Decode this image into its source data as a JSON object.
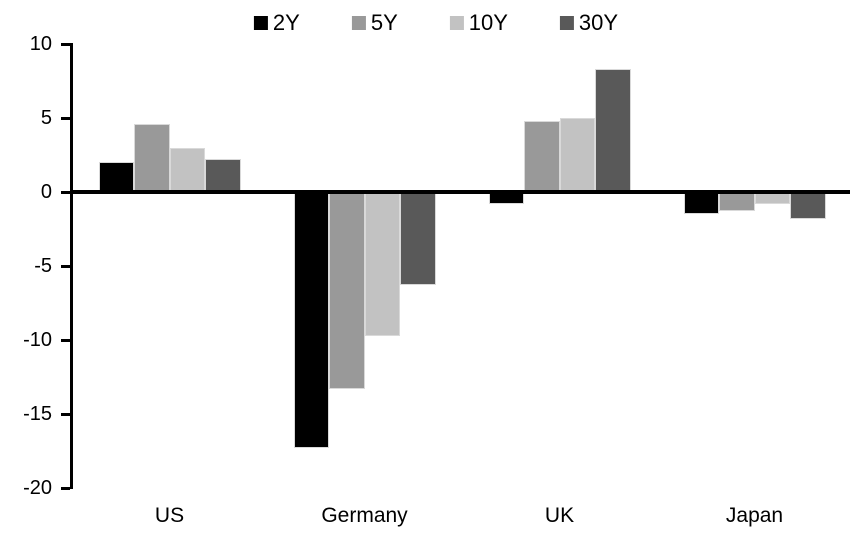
{
  "chart_data": {
    "type": "bar",
    "title": "",
    "categories": [
      "US",
      "Germany",
      "UK",
      "Japan"
    ],
    "series": [
      {
        "name": "2Y",
        "color": "#000000",
        "values": [
          2.0,
          -17.3,
          -0.8,
          -1.5
        ]
      },
      {
        "name": "5Y",
        "color": "#999999",
        "values": [
          4.6,
          -13.3,
          4.8,
          -1.3
        ]
      },
      {
        "name": "10Y",
        "color": "#c2c2c2",
        "values": [
          3.0,
          -9.7,
          5.0,
          -0.8
        ]
      },
      {
        "name": "30Y",
        "color": "#595959",
        "values": [
          2.2,
          -6.3,
          8.3,
          -1.8
        ]
      }
    ],
    "ylim": [
      -20,
      10
    ],
    "yticks": [
      10,
      5,
      0,
      -5,
      -10,
      -15,
      -20
    ],
    "xlabel": "",
    "ylabel": "",
    "legend_position": "top-center",
    "grid": false,
    "background": "#ffffff",
    "axis_color": "#000000",
    "bar_edge_color": "#d9d9d9"
  }
}
